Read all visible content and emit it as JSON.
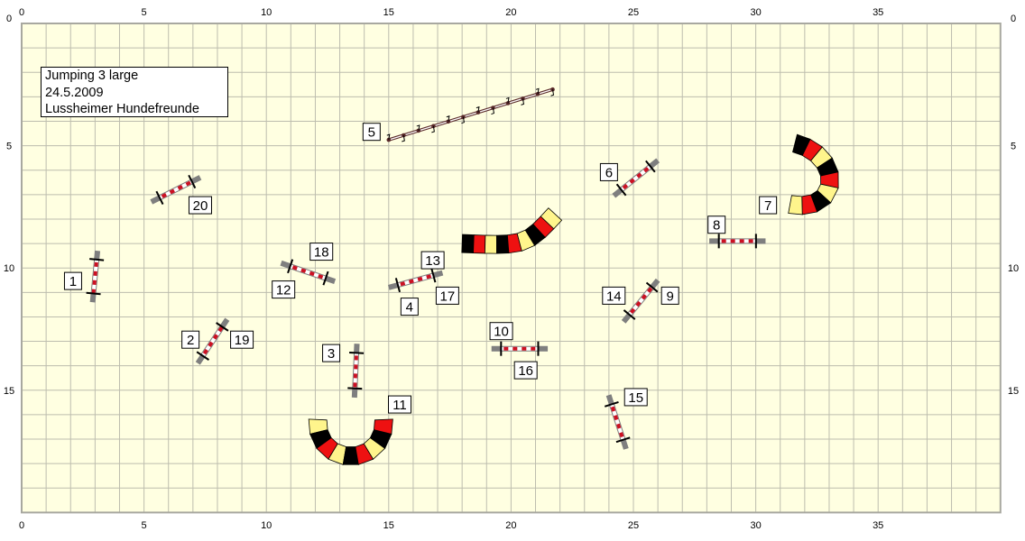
{
  "course_info": {
    "title": "Jumping 3 large",
    "date": "24.5.2009",
    "club": "Lussheimer Hundefreunde"
  },
  "axes": {
    "x_ticks": [
      "0",
      "5",
      "10",
      "15",
      "20",
      "25",
      "30",
      "35"
    ],
    "y_ticks": [
      "0",
      "5",
      "10",
      "15"
    ]
  },
  "colors": {
    "field": "#FFFFE1",
    "grid": "#BDBDAE",
    "border": "#A8A8A0",
    "tunnel_black": "#000000",
    "tunnel_red": "#EE1111",
    "tunnel_yellow": "#FFF58C",
    "jump_bar_gray": "#7F7F7F",
    "jump_red": "#CC1122",
    "weave": "#5A2A2A"
  },
  "obstacles": [
    {
      "numbers": [
        "1"
      ],
      "type": "jump"
    },
    {
      "numbers": [
        "20"
      ],
      "type": "jump"
    },
    {
      "numbers": [
        "2",
        "19"
      ],
      "type": "jump"
    },
    {
      "numbers": [
        "12",
        "18"
      ],
      "type": "jump"
    },
    {
      "numbers": [
        "3"
      ],
      "type": "jump"
    },
    {
      "numbers": [
        "4",
        "17"
      ],
      "type": "jump"
    },
    {
      "numbers": [
        "10",
        "16"
      ],
      "type": "jump"
    },
    {
      "numbers": [
        "6"
      ],
      "type": "jump"
    },
    {
      "numbers": [
        "14",
        "9"
      ],
      "type": "jump"
    },
    {
      "numbers": [
        "15"
      ],
      "type": "jump"
    },
    {
      "numbers": [
        "8"
      ],
      "type": "jump"
    },
    {
      "numbers": [
        "5"
      ],
      "type": "weave-poles",
      "poles": 12
    },
    {
      "numbers": [
        "13"
      ],
      "type": "tunnel"
    },
    {
      "numbers": [
        "11"
      ],
      "type": "tunnel"
    },
    {
      "numbers": [
        "7"
      ],
      "type": "tunnel"
    }
  ]
}
